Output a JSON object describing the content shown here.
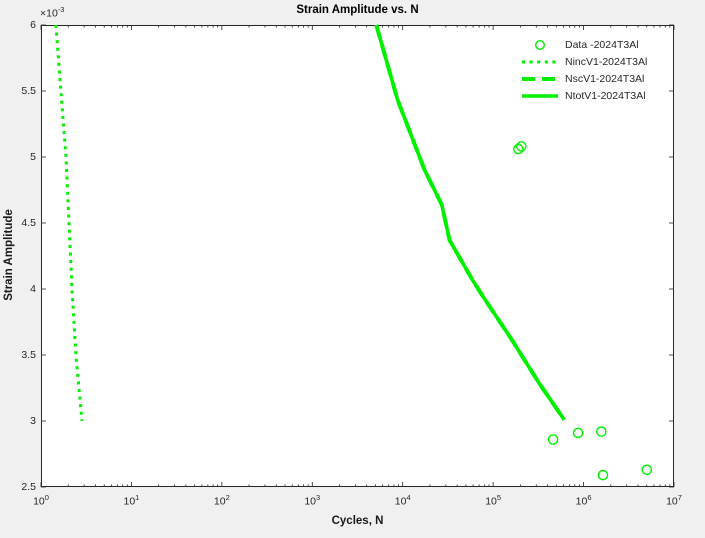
{
  "figure": {
    "background": "#f0f0f0",
    "plot_background": "#ffffff",
    "axis_color": "#262626",
    "series_color": "#00f000"
  },
  "chart_data": {
    "type": "line",
    "title": "Strain Amplitude vs. N",
    "xlabel": "Cycles, N",
    "ylabel": "Strain Amplitude",
    "x_scale": "log",
    "x_tick_base": "10",
    "x_tick_exponents": [
      0,
      1,
      2,
      3,
      4,
      5,
      6,
      7
    ],
    "xlim_exponents": [
      0,
      7
    ],
    "y_scale_label": {
      "base": "×10",
      "exp": "-3"
    },
    "y_unit_scale": "1e-3",
    "ylim": [
      2.5,
      6
    ],
    "y_ticks": [
      2.5,
      3,
      3.5,
      4,
      4.5,
      5,
      5.5,
      6
    ],
    "grid": false,
    "legend_position": "northeast",
    "series": [
      {
        "name": "Data -2024T3Al",
        "kind": "scatter",
        "marker": "circle",
        "color": "#00f000",
        "points": [
          [
            190000,
            5.06
          ],
          [
            205000,
            5.08
          ],
          [
            460000,
            2.86
          ],
          [
            870000,
            2.91
          ],
          [
            1570000,
            2.92
          ],
          [
            1640000,
            2.59
          ],
          [
            5000000,
            2.63
          ]
        ]
      },
      {
        "name": "NincV1-2024T3Al",
        "kind": "line",
        "style": "dotted",
        "color": "#00f000",
        "points": [
          [
            1.46,
            6.0
          ],
          [
            1.66,
            5.5
          ],
          [
            1.89,
            5.0
          ],
          [
            2.04,
            4.5
          ],
          [
            2.2,
            4.0
          ],
          [
            2.43,
            3.5
          ],
          [
            2.84,
            3.0
          ]
        ]
      },
      {
        "name": "NscV1-2024T3Al",
        "kind": "line",
        "style": "dashed",
        "color": "#00f000",
        "note": "coincides with NtotV1 curve and is hidden beneath it",
        "points": [
          [
            5100,
            6.0
          ],
          [
            8800,
            5.43
          ],
          [
            17500,
            4.9
          ],
          [
            27000,
            4.64
          ],
          [
            33000,
            4.37
          ],
          [
            59000,
            4.07
          ],
          [
            76000,
            3.95
          ],
          [
            163000,
            3.61
          ],
          [
            320000,
            3.29
          ],
          [
            610000,
            3.01
          ]
        ]
      },
      {
        "name": "NtotV1-2024T3Al",
        "kind": "line",
        "style": "solid",
        "color": "#00f000",
        "points": [
          [
            5100,
            6.0
          ],
          [
            8800,
            5.43
          ],
          [
            17500,
            4.9
          ],
          [
            27000,
            4.64
          ],
          [
            33000,
            4.37
          ],
          [
            59000,
            4.07
          ],
          [
            76000,
            3.95
          ],
          [
            163000,
            3.61
          ],
          [
            320000,
            3.29
          ],
          [
            610000,
            3.01
          ]
        ]
      }
    ]
  }
}
